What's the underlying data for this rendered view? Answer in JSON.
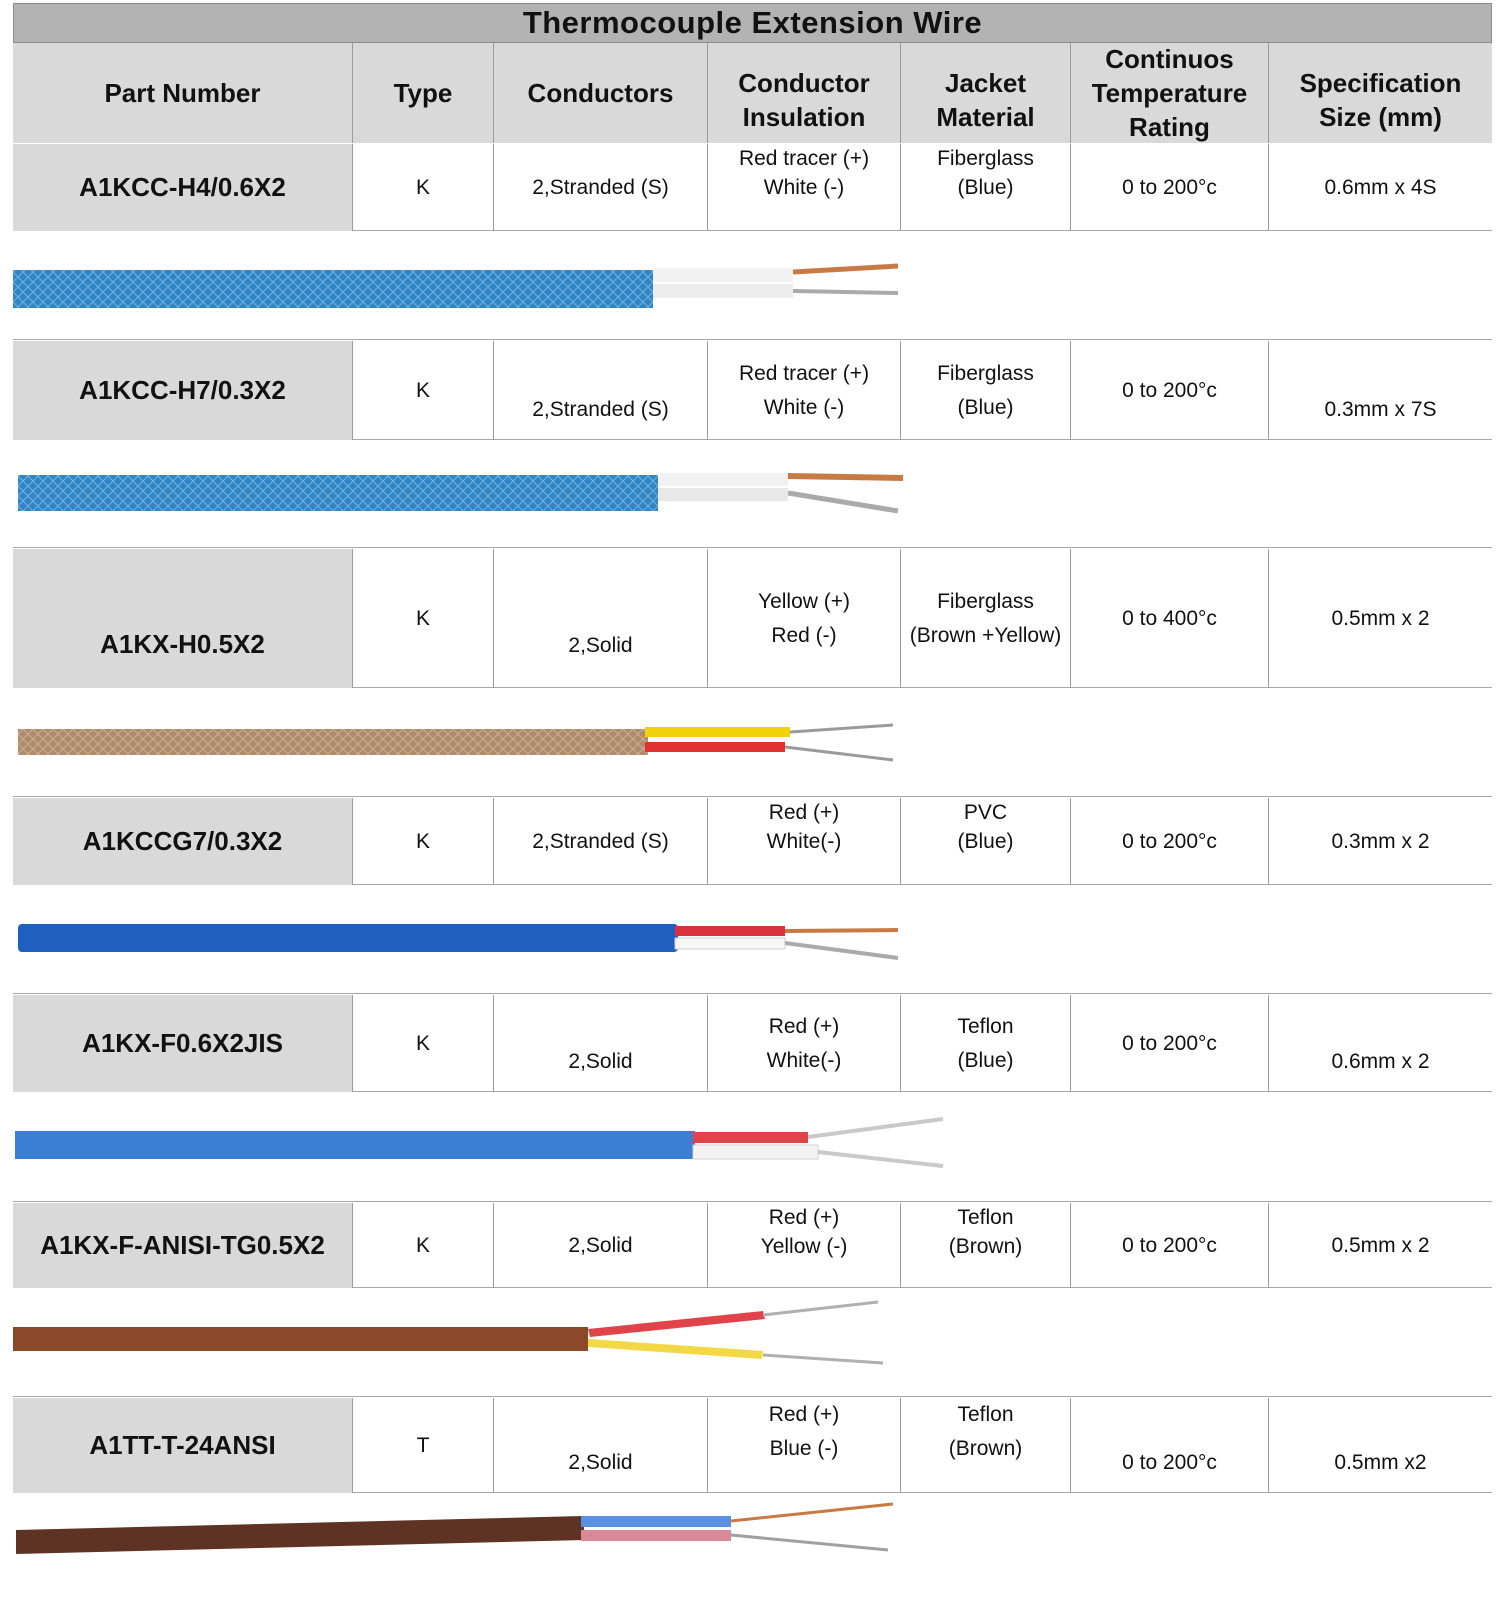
{
  "title": "Thermocouple Extension Wire",
  "headers": {
    "part_number": [
      "Part Number"
    ],
    "type": [
      "Type"
    ],
    "conductors": [
      "Conductors"
    ],
    "conductor_insulation": [
      "Conductor",
      "Insulation"
    ],
    "jacket_material": [
      "Jacket",
      "Material"
    ],
    "temperature": [
      "Continuos",
      "Temperature",
      "Rating"
    ],
    "spec_size": [
      "Specification",
      "Size (mm)"
    ]
  },
  "rows": [
    {
      "part_number": "A1KCC-H4/0.6X2",
      "type": "K",
      "conductors": "2,Stranded (S)",
      "insulation": [
        "Red tracer (+)",
        "White (-)"
      ],
      "jacket": [
        "Fiberglass",
        "(Blue)"
      ],
      "temperature": "0 to 200°c",
      "size": "0.6mm x 4S"
    },
    {
      "part_number": "A1KCC-H7/0.3X2",
      "type": "K",
      "conductors": "2,Stranded (S)",
      "insulation": [
        "Red tracer (+)",
        "White (-)"
      ],
      "jacket": [
        "Fiberglass",
        "(Blue)"
      ],
      "temperature": "0 to 200°c",
      "size": "0.3mm x 7S"
    },
    {
      "part_number": "A1KX-H0.5X2",
      "type": "K",
      "conductors": "2,Solid",
      "insulation": [
        "Yellow (+)",
        "Red (-)"
      ],
      "jacket": [
        "Fiberglass",
        "(Brown +Yellow)"
      ],
      "temperature": "0 to 400°c",
      "size": "0.5mm x 2"
    },
    {
      "part_number": "A1KCCG7/0.3X2",
      "type": "K",
      "conductors": "2,Stranded (S)",
      "insulation": [
        "Red (+)",
        "White(-)"
      ],
      "jacket": [
        "PVC",
        "(Blue)"
      ],
      "temperature": "0 to 200°c",
      "size": "0.3mm x 2"
    },
    {
      "part_number": "A1KX-F0.6X2JIS",
      "type": "K",
      "conductors": "2,Solid",
      "insulation": [
        "Red (+)",
        "White(-)"
      ],
      "jacket": [
        "Teflon",
        "(Blue)"
      ],
      "temperature": "0 to 200°c",
      "size": "0.6mm x 2"
    },
    {
      "part_number": "A1KX-F-ANISI-TG0.5X2",
      "type": "K",
      "conductors": "2,Solid",
      "insulation": [
        "Red (+)",
        "Yellow (-)"
      ],
      "jacket": [
        "Teflon",
        "(Brown)"
      ],
      "temperature": "0 to 200°c",
      "size": "0.5mm x 2"
    },
    {
      "part_number": "A1TT-T-24ANSI",
      "type": "T",
      "conductors": "2,Solid",
      "insulation": [
        "Red (+)",
        "Blue (-)"
      ],
      "jacket": [
        "Teflon",
        "(Brown)"
      ],
      "temperature": "0 to 200°c",
      "size": "0.5mm x2"
    }
  ],
  "wire_images": [
    {
      "wire": "fiberglass-stranded",
      "jacket_color": "#2f86c6",
      "pos_color": "#c87a45",
      "neg_color": "#f2f2f2",
      "core_color": "#c87a45",
      "core2_color": "#aaaaaa"
    },
    {
      "wire": "fiberglass-stranded",
      "jacket_color": "#2f86c6",
      "pos_color": "#c87a45",
      "neg_color": "#f2f2f2",
      "core_color": "#c87a45",
      "core2_color": "#aaaaaa"
    },
    {
      "wire": "fiberglass-solid",
      "jacket_color": "#b08b6a",
      "pos_color": "#f2d20a",
      "neg_color": "#e03030",
      "core_color": "#9a9a9a",
      "core2_color": "#9a9a9a"
    },
    {
      "wire": "pvc-stranded",
      "jacket_color": "#1f5fbf",
      "pos_color": "#d8333c",
      "neg_color": "#f7f7f7",
      "core_color": "#c87a45",
      "core2_color": "#aaaaaa"
    },
    {
      "wire": "teflon-solid",
      "jacket_color": "#3b7fd4",
      "pos_color": "#e0444a",
      "neg_color": "#f4f4f4",
      "core_color": "#c9c9c9",
      "core2_color": "#c9c9c9"
    },
    {
      "wire": "teflon-solid",
      "jacket_color": "#8a4a2a",
      "pos_color": "#e0444a",
      "neg_color": "#f2d844",
      "core_color": "#b0b0b0",
      "core2_color": "#b0b0b0"
    },
    {
      "wire": "teflon-solid",
      "jacket_color": "#5e3324",
      "pos_color": "#5b8fe0",
      "neg_color": "#d98a98",
      "core_color": "#c87a45",
      "core2_color": "#a0a0a0"
    }
  ]
}
